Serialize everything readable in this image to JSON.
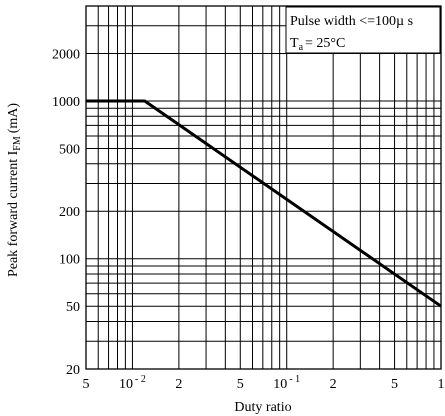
{
  "chart_data": {
    "type": "line",
    "x_scale": "log",
    "y_scale": "log",
    "xlim": [
      0.005,
      1
    ],
    "ylim": [
      20,
      4000
    ],
    "xlabel": "Duty ratio",
    "ylabel_main": "Peak forward current I",
    "ylabel_sub": "FM",
    "ylabel_unit": "(mA)",
    "x_ticks": [
      {
        "value": 0.005,
        "base": "5",
        "exp": ""
      },
      {
        "value": 0.01,
        "base": "10",
        "exp": "- 2"
      },
      {
        "value": 0.02,
        "base": "2",
        "exp": ""
      },
      {
        "value": 0.05,
        "base": "5",
        "exp": ""
      },
      {
        "value": 0.1,
        "base": "10",
        "exp": "- 1"
      },
      {
        "value": 0.2,
        "base": "2",
        "exp": ""
      },
      {
        "value": 0.5,
        "base": "5",
        "exp": ""
      },
      {
        "value": 1,
        "base": "1",
        "exp": ""
      }
    ],
    "y_ticks": [
      {
        "value": 20,
        "label": "20"
      },
      {
        "value": 50,
        "label": "50"
      },
      {
        "value": 100,
        "label": "100"
      },
      {
        "value": 200,
        "label": "200"
      },
      {
        "value": 500,
        "label": "500"
      },
      {
        "value": 1000,
        "label": "1000"
      },
      {
        "value": 2000,
        "label": "2000"
      }
    ],
    "series": [
      {
        "x": [
          0.005,
          0.012,
          1
        ],
        "y": [
          1000,
          1000,
          50
        ]
      }
    ],
    "annotation": {
      "line1": "Pulse width <=100µ s",
      "line2_main": "T",
      "line2_sub": "a",
      "line2_rest": "=  25°C"
    },
    "grid": true
  }
}
